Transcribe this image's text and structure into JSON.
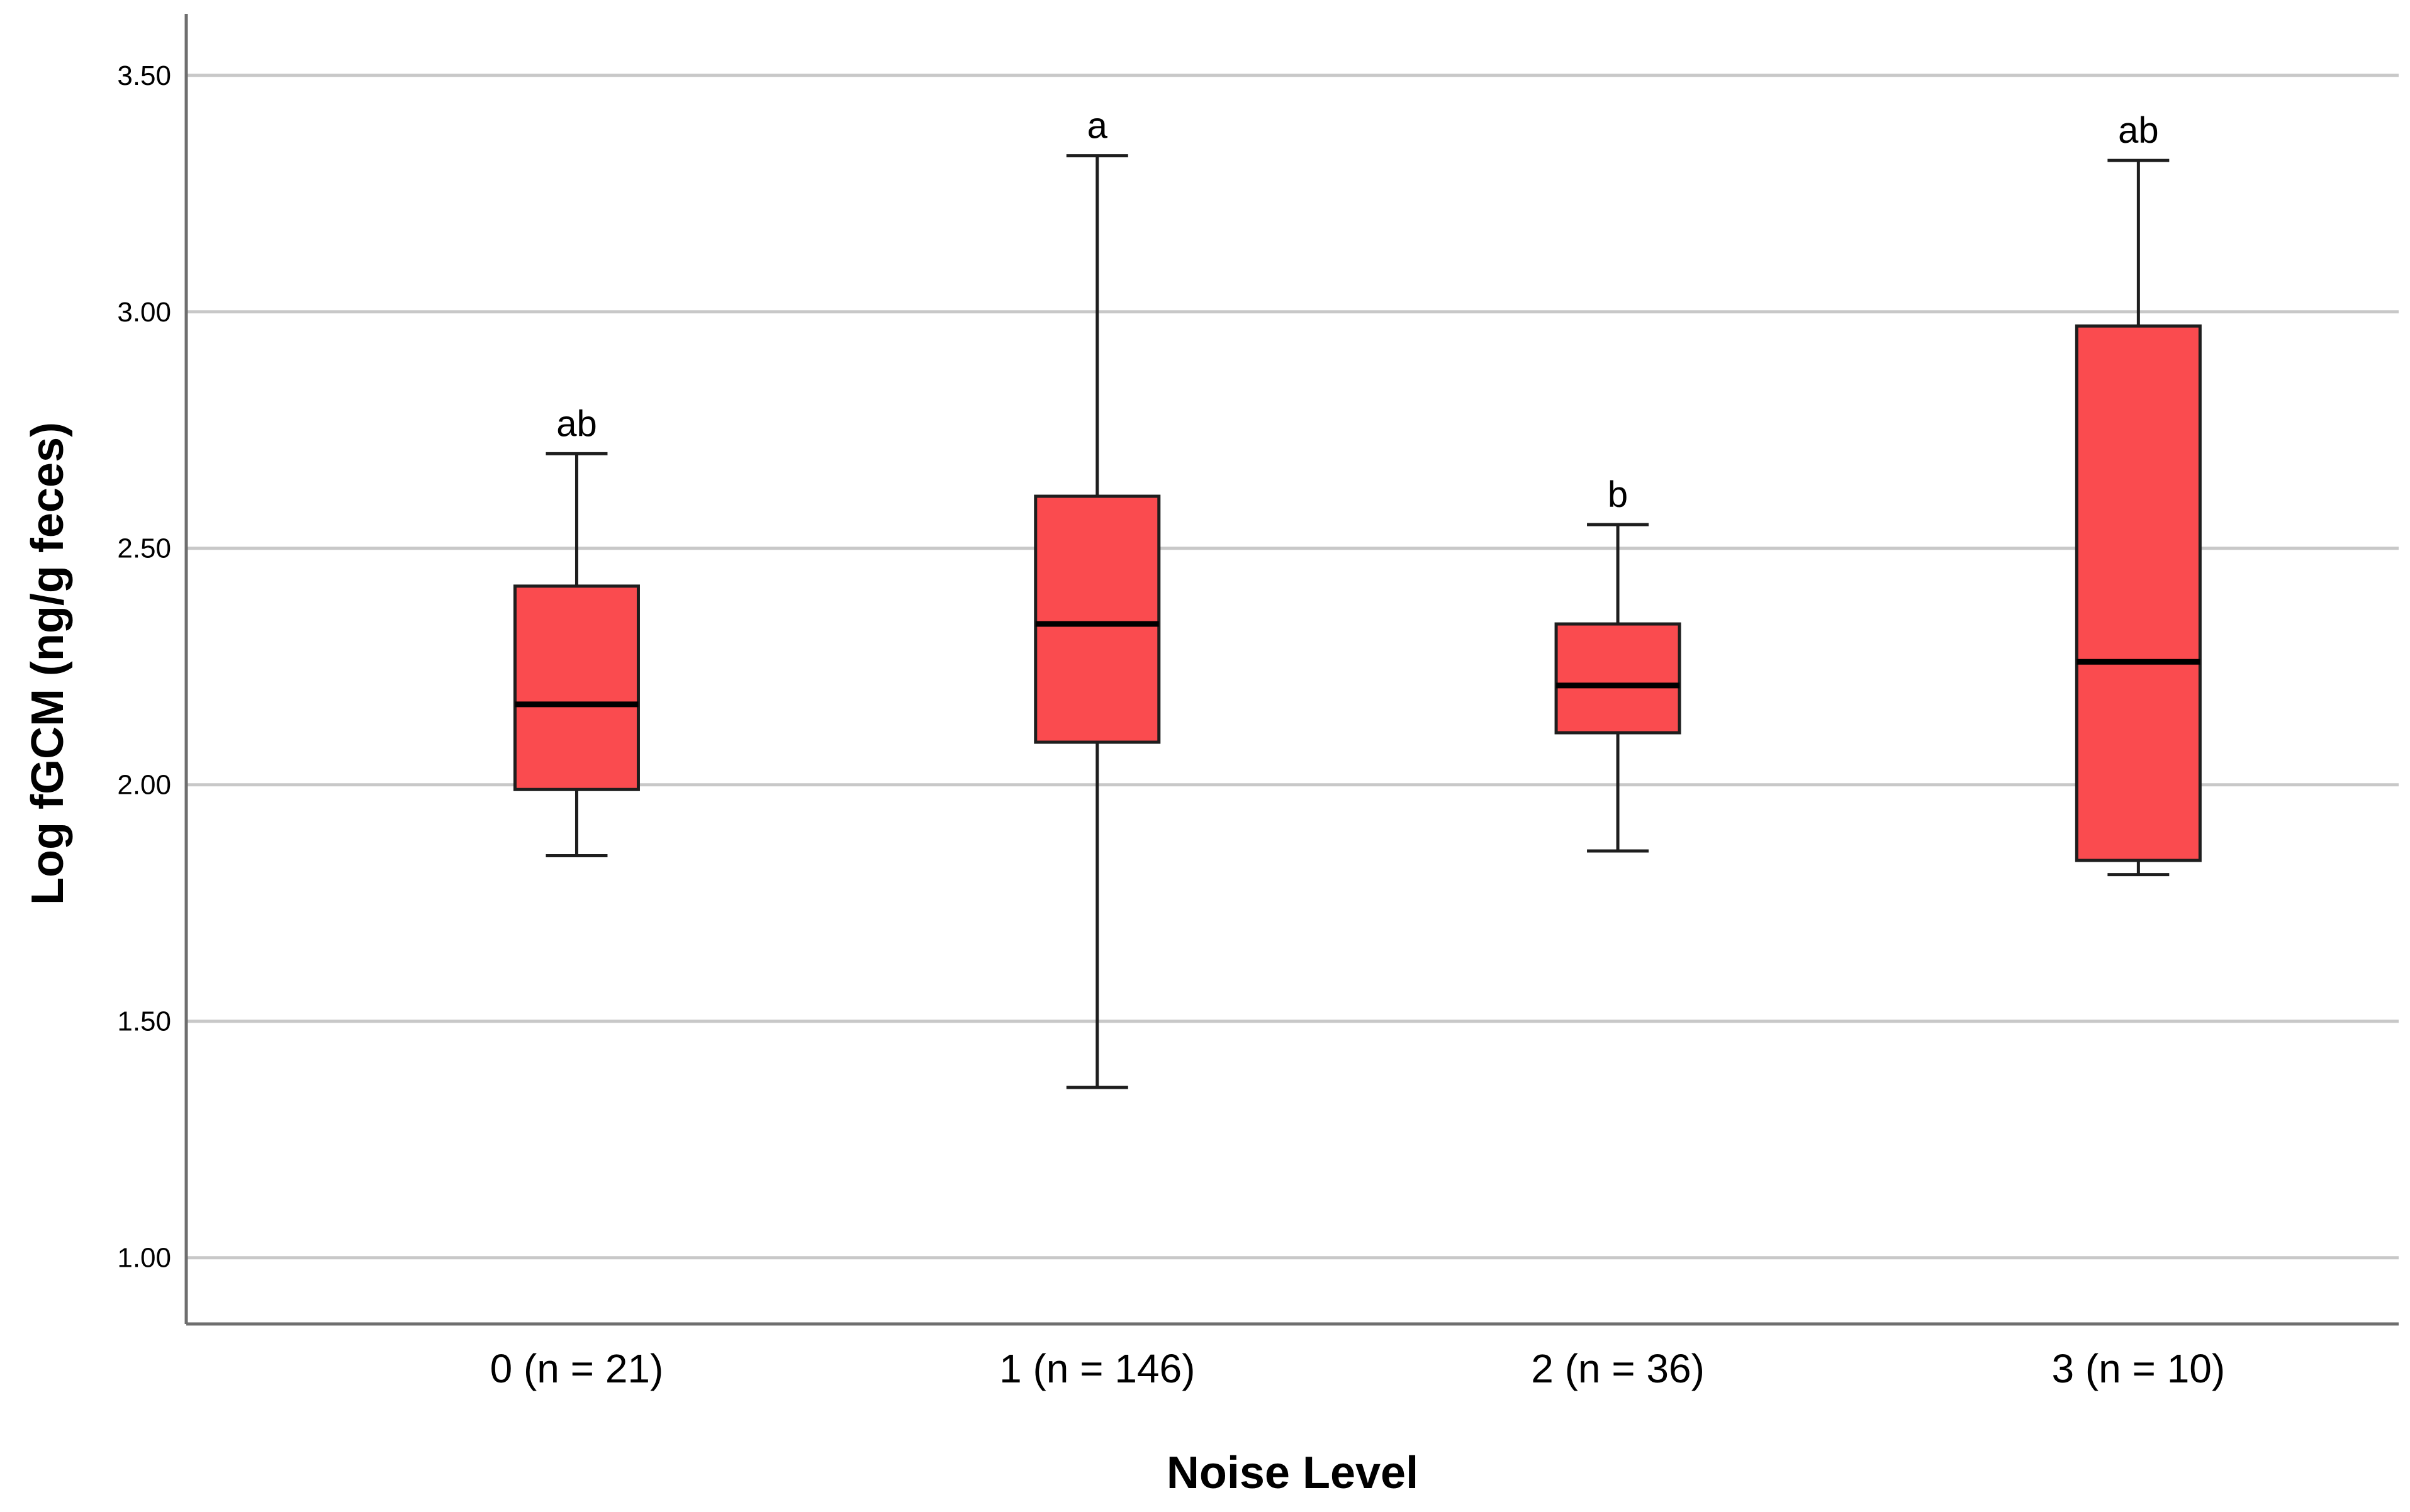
{
  "chart_data": {
    "type": "boxplot",
    "title": "",
    "xlabel": "Noise Level",
    "ylabel": "Log fGCM (ng/g feces)",
    "ylim": [
      0.86,
      3.63
    ],
    "yticks": [
      "1.00",
      "1.50",
      "2.00",
      "2.50",
      "3.00",
      "3.50"
    ],
    "grid": true,
    "box_color": "#fa4b4f",
    "categories": [
      "0 (n = 21)",
      "1 (n = 146)",
      "2 (n = 36)",
      "3 (n = 10)"
    ],
    "series": [
      {
        "category": "0 (n = 21)",
        "whisker_low": 1.85,
        "q1": 1.99,
        "median": 2.17,
        "q3": 2.42,
        "whisker_high": 2.7,
        "significance": "ab"
      },
      {
        "category": "1 (n = 146)",
        "whisker_low": 1.36,
        "q1": 2.09,
        "median": 2.34,
        "q3": 2.61,
        "whisker_high": 3.33,
        "significance": "a"
      },
      {
        "category": "2 (n = 36)",
        "whisker_low": 1.86,
        "q1": 2.11,
        "median": 2.21,
        "q3": 2.34,
        "whisker_high": 2.55,
        "significance": "b"
      },
      {
        "category": "3 (n = 10)",
        "whisker_low": 1.81,
        "q1": 1.84,
        "median": 2.26,
        "q3": 2.97,
        "whisker_high": 3.32,
        "significance": "ab"
      }
    ]
  }
}
